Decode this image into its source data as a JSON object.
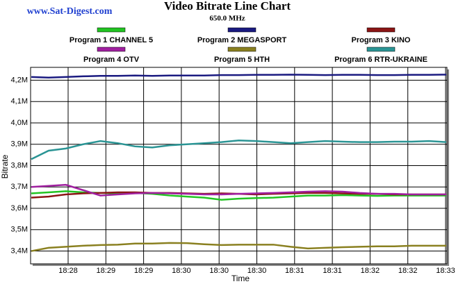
{
  "chart_data": {
    "type": "line",
    "brand": "www.Sat-Digest.com",
    "title": "Video Bitrate Line Chart",
    "subtitle": "650.0 MHz",
    "y_label": "Bitrate",
    "x_label": "Time",
    "x_tick_labels": [
      "18:28",
      "18:29",
      "18:29",
      "18:30",
      "18:30",
      "18:30",
      "18:31",
      "18:31",
      "18:32",
      "18:32",
      "18:33"
    ],
    "ylim": [
      3.34,
      4.26
    ],
    "yticks": [
      {
        "value": 3.4,
        "label": "3,4M"
      },
      {
        "value": 3.5,
        "label": "3,5M"
      },
      {
        "value": 3.6,
        "label": "3,6M"
      },
      {
        "value": 3.7,
        "label": "3,7M"
      },
      {
        "value": 3.8,
        "label": "3,8M"
      },
      {
        "value": 3.9,
        "label": "3,9M"
      },
      {
        "value": 4.0,
        "label": "4,0M"
      },
      {
        "value": 4.1,
        "label": "4,1M"
      },
      {
        "value": 4.2,
        "label": "4,2M"
      }
    ],
    "grid": true,
    "series": [
      {
        "name": "Program 1 CHANNEL 5",
        "color": "#22c422",
        "values": [
          3.67,
          3.675,
          3.68,
          3.675,
          3.672,
          3.67,
          3.672,
          3.668,
          3.66,
          3.655,
          3.65,
          3.64,
          3.645,
          3.648,
          3.65,
          3.655,
          3.66,
          3.66,
          3.662,
          3.66,
          3.658,
          3.66,
          3.66,
          3.66,
          3.66
        ]
      },
      {
        "name": "Program 2 MEGASPORT",
        "color": "#1a1a80",
        "values": [
          4.215,
          4.212,
          4.215,
          4.218,
          4.22,
          4.22,
          4.222,
          4.22,
          4.222,
          4.222,
          4.222,
          4.224,
          4.224,
          4.225,
          4.225,
          4.226,
          4.225,
          4.224,
          4.225,
          4.225,
          4.224,
          4.224,
          4.225,
          4.225,
          4.226
        ]
      },
      {
        "name": "Program 3 KINO",
        "color": "#8b1515",
        "values": [
          3.65,
          3.655,
          3.665,
          3.67,
          3.672,
          3.675,
          3.675,
          3.672,
          3.672,
          3.67,
          3.668,
          3.67,
          3.668,
          3.665,
          3.668,
          3.67,
          3.672,
          3.672,
          3.67,
          3.668,
          3.668,
          3.665,
          3.665,
          3.665,
          3.665
        ]
      },
      {
        "name": "Program 4 OTV",
        "color": "#a020a0",
        "values": [
          3.7,
          3.705,
          3.71,
          3.685,
          3.66,
          3.665,
          3.67,
          3.672,
          3.67,
          3.668,
          3.665,
          3.665,
          3.668,
          3.67,
          3.672,
          3.675,
          3.678,
          3.68,
          3.678,
          3.672,
          3.668,
          3.668,
          3.665,
          3.665,
          3.665
        ]
      },
      {
        "name": "Program 5 HTH",
        "color": "#8a8020",
        "values": [
          3.4,
          3.415,
          3.42,
          3.425,
          3.428,
          3.43,
          3.435,
          3.435,
          3.438,
          3.437,
          3.432,
          3.428,
          3.43,
          3.43,
          3.43,
          3.42,
          3.412,
          3.415,
          3.418,
          3.42,
          3.422,
          3.422,
          3.425,
          3.425,
          3.425
        ]
      },
      {
        "name": "Program 6 RTR-UKRAINE",
        "color": "#2a9494",
        "values": [
          3.83,
          3.87,
          3.88,
          3.9,
          3.915,
          3.905,
          3.89,
          3.885,
          3.895,
          3.9,
          3.905,
          3.91,
          3.918,
          3.915,
          3.91,
          3.905,
          3.91,
          3.915,
          3.912,
          3.91,
          3.91,
          3.912,
          3.912,
          3.915,
          3.91
        ]
      }
    ]
  }
}
